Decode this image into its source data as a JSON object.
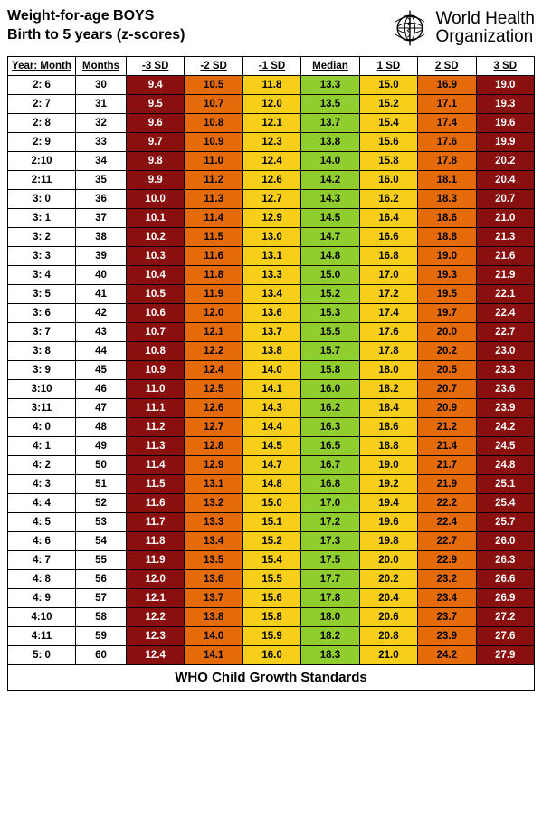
{
  "title_line1": "Weight-for-age  BOYS",
  "title_line2": "Birth to 5 years (z-scores)",
  "org_line1": "World Health",
  "org_line2": "Organization",
  "footer": "WHO Child Growth Standards",
  "colors": {
    "neg3": "#8a0f0f",
    "neg2": "#e56b0a",
    "neg1": "#f7cf1a",
    "median": "#8fce2e",
    "pos1": "#f7cf1a",
    "pos2": "#e56b0a",
    "pos3": "#8a0f0f",
    "white_text": "#ffffff",
    "black_text": "#000000"
  },
  "columns": [
    "Year: Month",
    "Months",
    "-3 SD",
    "-2 SD",
    "-1 SD",
    "Median",
    "1 SD",
    "2 SD",
    "3 SD"
  ],
  "rows": [
    {
      "ym": "2: 6",
      "m": "30",
      "v": [
        "9.4",
        "10.5",
        "11.8",
        "13.3",
        "15.0",
        "16.9",
        "19.0"
      ]
    },
    {
      "ym": "2: 7",
      "m": "31",
      "v": [
        "9.5",
        "10.7",
        "12.0",
        "13.5",
        "15.2",
        "17.1",
        "19.3"
      ]
    },
    {
      "ym": "2: 8",
      "m": "32",
      "v": [
        "9.6",
        "10.8",
        "12.1",
        "13.7",
        "15.4",
        "17.4",
        "19.6"
      ]
    },
    {
      "ym": "2: 9",
      "m": "33",
      "v": [
        "9.7",
        "10.9",
        "12.3",
        "13.8",
        "15.6",
        "17.6",
        "19.9"
      ]
    },
    {
      "ym": "2:10",
      "m": "34",
      "v": [
        "9.8",
        "11.0",
        "12.4",
        "14.0",
        "15.8",
        "17.8",
        "20.2"
      ]
    },
    {
      "ym": "2:11",
      "m": "35",
      "v": [
        "9.9",
        "11.2",
        "12.6",
        "14.2",
        "16.0",
        "18.1",
        "20.4"
      ]
    },
    {
      "ym": "3: 0",
      "m": "36",
      "v": [
        "10.0",
        "11.3",
        "12.7",
        "14.3",
        "16.2",
        "18.3",
        "20.7"
      ]
    },
    {
      "ym": "3: 1",
      "m": "37",
      "v": [
        "10.1",
        "11.4",
        "12.9",
        "14.5",
        "16.4",
        "18.6",
        "21.0"
      ]
    },
    {
      "ym": "3: 2",
      "m": "38",
      "v": [
        "10.2",
        "11.5",
        "13.0",
        "14.7",
        "16.6",
        "18.8",
        "21.3"
      ]
    },
    {
      "ym": "3: 3",
      "m": "39",
      "v": [
        "10.3",
        "11.6",
        "13.1",
        "14.8",
        "16.8",
        "19.0",
        "21.6"
      ]
    },
    {
      "ym": "3: 4",
      "m": "40",
      "v": [
        "10.4",
        "11.8",
        "13.3",
        "15.0",
        "17.0",
        "19.3",
        "21.9"
      ]
    },
    {
      "ym": "3: 5",
      "m": "41",
      "v": [
        "10.5",
        "11.9",
        "13.4",
        "15.2",
        "17.2",
        "19.5",
        "22.1"
      ]
    },
    {
      "ym": "3: 6",
      "m": "42",
      "v": [
        "10.6",
        "12.0",
        "13.6",
        "15.3",
        "17.4",
        "19.7",
        "22.4"
      ]
    },
    {
      "ym": "3: 7",
      "m": "43",
      "v": [
        "10.7",
        "12.1",
        "13.7",
        "15.5",
        "17.6",
        "20.0",
        "22.7"
      ]
    },
    {
      "ym": "3: 8",
      "m": "44",
      "v": [
        "10.8",
        "12.2",
        "13.8",
        "15.7",
        "17.8",
        "20.2",
        "23.0"
      ]
    },
    {
      "ym": "3: 9",
      "m": "45",
      "v": [
        "10.9",
        "12.4",
        "14.0",
        "15.8",
        "18.0",
        "20.5",
        "23.3"
      ]
    },
    {
      "ym": "3:10",
      "m": "46",
      "v": [
        "11.0",
        "12.5",
        "14.1",
        "16.0",
        "18.2",
        "20.7",
        "23.6"
      ]
    },
    {
      "ym": "3:11",
      "m": "47",
      "v": [
        "11.1",
        "12.6",
        "14.3",
        "16.2",
        "18.4",
        "20.9",
        "23.9"
      ]
    },
    {
      "ym": "4: 0",
      "m": "48",
      "v": [
        "11.2",
        "12.7",
        "14.4",
        "16.3",
        "18.6",
        "21.2",
        "24.2"
      ]
    },
    {
      "ym": "4: 1",
      "m": "49",
      "v": [
        "11.3",
        "12.8",
        "14.5",
        "16.5",
        "18.8",
        "21.4",
        "24.5"
      ]
    },
    {
      "ym": "4: 2",
      "m": "50",
      "v": [
        "11.4",
        "12.9",
        "14.7",
        "16.7",
        "19.0",
        "21.7",
        "24.8"
      ]
    },
    {
      "ym": "4: 3",
      "m": "51",
      "v": [
        "11.5",
        "13.1",
        "14.8",
        "16.8",
        "19.2",
        "21.9",
        "25.1"
      ]
    },
    {
      "ym": "4: 4",
      "m": "52",
      "v": [
        "11.6",
        "13.2",
        "15.0",
        "17.0",
        "19.4",
        "22.2",
        "25.4"
      ]
    },
    {
      "ym": "4: 5",
      "m": "53",
      "v": [
        "11.7",
        "13.3",
        "15.1",
        "17.2",
        "19.6",
        "22.4",
        "25.7"
      ]
    },
    {
      "ym": "4: 6",
      "m": "54",
      "v": [
        "11.8",
        "13.4",
        "15.2",
        "17.3",
        "19.8",
        "22.7",
        "26.0"
      ]
    },
    {
      "ym": "4: 7",
      "m": "55",
      "v": [
        "11.9",
        "13.5",
        "15.4",
        "17.5",
        "20.0",
        "22.9",
        "26.3"
      ]
    },
    {
      "ym": "4: 8",
      "m": "56",
      "v": [
        "12.0",
        "13.6",
        "15.5",
        "17.7",
        "20.2",
        "23.2",
        "26.6"
      ]
    },
    {
      "ym": "4: 9",
      "m": "57",
      "v": [
        "12.1",
        "13.7",
        "15.6",
        "17.8",
        "20.4",
        "23.4",
        "26.9"
      ]
    },
    {
      "ym": "4:10",
      "m": "58",
      "v": [
        "12.2",
        "13.8",
        "15.8",
        "18.0",
        "20.6",
        "23.7",
        "27.2"
      ]
    },
    {
      "ym": "4:11",
      "m": "59",
      "v": [
        "12.3",
        "14.0",
        "15.9",
        "18.2",
        "20.8",
        "23.9",
        "27.6"
      ]
    },
    {
      "ym": "5: 0",
      "m": "60",
      "v": [
        "12.4",
        "14.1",
        "16.0",
        "18.3",
        "21.0",
        "24.2",
        "27.9"
      ]
    }
  ]
}
